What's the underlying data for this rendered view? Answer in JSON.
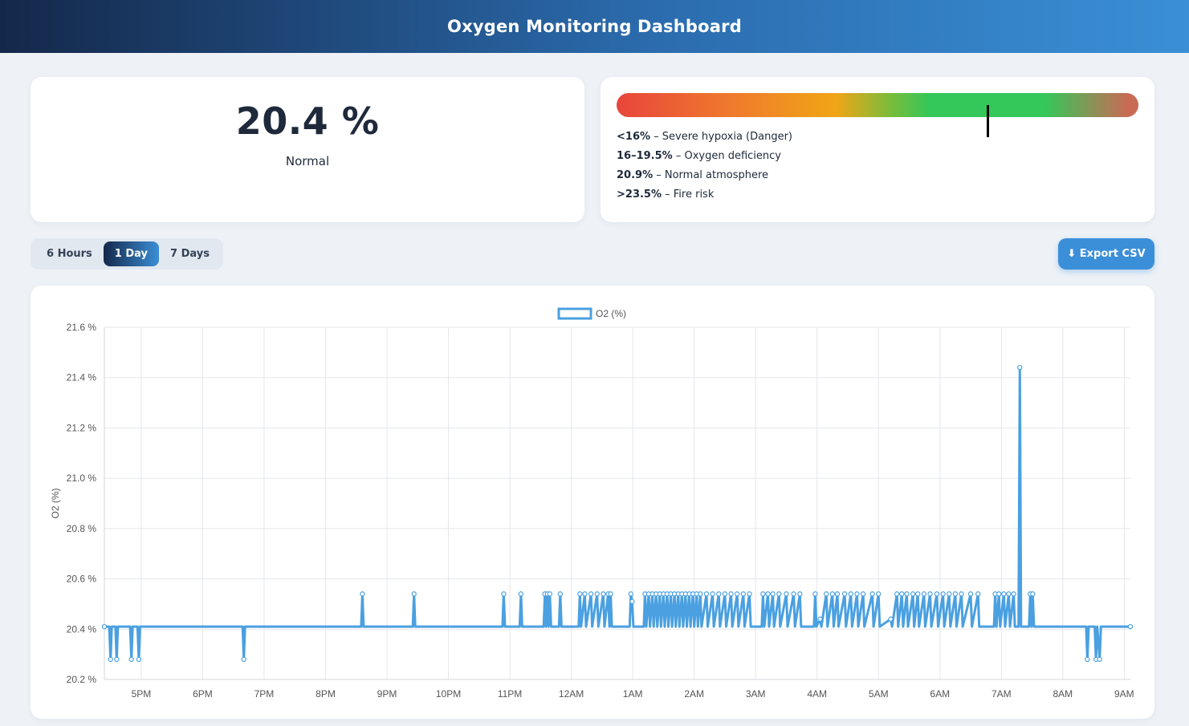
{
  "header": {
    "title": "Oxygen Monitoring Dashboard"
  },
  "reading": {
    "value": "20.4 %",
    "status": "Normal"
  },
  "scale": {
    "marker_value": 20.4,
    "ranges": [
      {
        "label": "<16%",
        "desc": " – Severe hypoxia (Danger)"
      },
      {
        "label": "16–19.5%",
        "desc": " – Oxygen deficiency"
      },
      {
        "label": "20.9%",
        "desc": " – Normal atmosphere"
      },
      {
        "label": ">23.5%",
        "desc": " – Fire risk"
      }
    ]
  },
  "range_tabs": [
    {
      "label": "6 Hours",
      "active": false
    },
    {
      "label": "1 Day",
      "active": true
    },
    {
      "label": "7 Days",
      "active": false
    }
  ],
  "export": {
    "label": "⬇ Export CSV"
  },
  "colors": {
    "line": "#4aa0e0",
    "accent": "#3b8fd9"
  },
  "chart_data": {
    "type": "line",
    "title": "",
    "ylabel": "O2 (%)",
    "ylim": [
      20.2,
      21.6
    ],
    "y_ticks": [
      "21.6 %",
      "21.4 %",
      "21.2 %",
      "21.0 %",
      "20.8 %",
      "20.6 %",
      "20.4 %",
      "20.2 %"
    ],
    "x_ticks": [
      "5PM",
      "6PM",
      "7PM",
      "8PM",
      "9PM",
      "10PM",
      "11PM",
      "12AM",
      "1AM",
      "2AM",
      "3AM",
      "4AM",
      "5AM",
      "6AM",
      "7AM",
      "8AM",
      "9AM"
    ],
    "x_range_hours": [
      16.4,
      33.1
    ],
    "baseline": 20.41,
    "series": [
      {
        "name": "O2 (%)",
        "points": [
          [
            16.4,
            20.41
          ],
          [
            16.48,
            20.41
          ],
          [
            16.5,
            20.28
          ],
          [
            16.52,
            20.41
          ],
          [
            16.58,
            20.41
          ],
          [
            16.6,
            20.28
          ],
          [
            16.62,
            20.41
          ],
          [
            16.82,
            20.41
          ],
          [
            16.84,
            20.28
          ],
          [
            16.86,
            20.41
          ],
          [
            16.94,
            20.41
          ],
          [
            16.96,
            20.28
          ],
          [
            16.98,
            20.41
          ],
          [
            18.65,
            20.41
          ],
          [
            18.67,
            20.28
          ],
          [
            18.69,
            20.41
          ],
          [
            20.58,
            20.41
          ],
          [
            20.6,
            20.54
          ],
          [
            20.62,
            20.41
          ],
          [
            21.42,
            20.41
          ],
          [
            21.44,
            20.54
          ],
          [
            21.46,
            20.41
          ],
          [
            22.88,
            20.41
          ],
          [
            22.9,
            20.54
          ],
          [
            22.92,
            20.41
          ],
          [
            23.16,
            20.41
          ],
          [
            23.18,
            20.54
          ],
          [
            23.2,
            20.41
          ],
          [
            23.55,
            20.41
          ],
          [
            23.57,
            20.54
          ],
          [
            23.59,
            20.41
          ],
          [
            23.61,
            20.54
          ],
          [
            23.63,
            20.41
          ],
          [
            23.65,
            20.54
          ],
          [
            23.67,
            20.41
          ],
          [
            23.8,
            20.41
          ],
          [
            23.82,
            20.54
          ],
          [
            23.84,
            20.41
          ],
          [
            24.12,
            20.41
          ],
          [
            24.14,
            20.54
          ],
          [
            24.16,
            20.41
          ],
          [
            24.22,
            20.54
          ],
          [
            24.24,
            20.41
          ],
          [
            24.32,
            20.54
          ],
          [
            24.34,
            20.41
          ],
          [
            24.42,
            20.54
          ],
          [
            24.44,
            20.41
          ],
          [
            24.52,
            20.54
          ],
          [
            24.54,
            20.41
          ],
          [
            24.6,
            20.54
          ],
          [
            24.62,
            20.41
          ],
          [
            24.64,
            20.54
          ],
          [
            24.66,
            20.41
          ],
          [
            24.95,
            20.41
          ],
          [
            24.97,
            20.54
          ],
          [
            24.99,
            20.51
          ],
          [
            25.01,
            20.41
          ],
          [
            25.18,
            20.41
          ],
          [
            25.2,
            20.54
          ],
          [
            25.22,
            20.41
          ],
          [
            25.26,
            20.54
          ],
          [
            25.28,
            20.41
          ],
          [
            25.32,
            20.54
          ],
          [
            25.34,
            20.41
          ],
          [
            25.38,
            20.54
          ],
          [
            25.4,
            20.41
          ],
          [
            25.44,
            20.54
          ],
          [
            25.46,
            20.41
          ],
          [
            25.5,
            20.54
          ],
          [
            25.52,
            20.41
          ],
          [
            25.56,
            20.54
          ],
          [
            25.58,
            20.41
          ],
          [
            25.62,
            20.54
          ],
          [
            25.64,
            20.41
          ],
          [
            25.68,
            20.54
          ],
          [
            25.7,
            20.41
          ],
          [
            25.74,
            20.54
          ],
          [
            25.76,
            20.41
          ],
          [
            25.8,
            20.54
          ],
          [
            25.82,
            20.41
          ],
          [
            25.86,
            20.54
          ],
          [
            25.88,
            20.41
          ],
          [
            25.92,
            20.54
          ],
          [
            25.94,
            20.41
          ],
          [
            25.98,
            20.54
          ],
          [
            26.0,
            20.41
          ],
          [
            26.04,
            20.54
          ],
          [
            26.06,
            20.41
          ],
          [
            26.1,
            20.54
          ],
          [
            26.12,
            20.41
          ],
          [
            26.2,
            20.54
          ],
          [
            26.22,
            20.41
          ],
          [
            26.3,
            20.54
          ],
          [
            26.32,
            20.41
          ],
          [
            26.4,
            20.54
          ],
          [
            26.42,
            20.41
          ],
          [
            26.5,
            20.54
          ],
          [
            26.52,
            20.41
          ],
          [
            26.6,
            20.54
          ],
          [
            26.62,
            20.41
          ],
          [
            26.7,
            20.54
          ],
          [
            26.72,
            20.41
          ],
          [
            26.8,
            20.54
          ],
          [
            26.82,
            20.41
          ],
          [
            26.9,
            20.54
          ],
          [
            26.92,
            20.41
          ],
          [
            27.1,
            20.41
          ],
          [
            27.12,
            20.54
          ],
          [
            27.14,
            20.41
          ],
          [
            27.2,
            20.54
          ],
          [
            27.22,
            20.41
          ],
          [
            27.28,
            20.54
          ],
          [
            27.3,
            20.41
          ],
          [
            27.38,
            20.54
          ],
          [
            27.4,
            20.41
          ],
          [
            27.5,
            20.54
          ],
          [
            27.52,
            20.41
          ],
          [
            27.62,
            20.54
          ],
          [
            27.64,
            20.41
          ],
          [
            27.72,
            20.54
          ],
          [
            27.74,
            20.41
          ],
          [
            27.95,
            20.41
          ],
          [
            27.97,
            20.54
          ],
          [
            27.99,
            20.41
          ],
          [
            28.05,
            20.44
          ],
          [
            28.07,
            20.41
          ],
          [
            28.15,
            20.54
          ],
          [
            28.17,
            20.41
          ],
          [
            28.25,
            20.54
          ],
          [
            28.27,
            20.41
          ],
          [
            28.33,
            20.54
          ],
          [
            28.35,
            20.41
          ],
          [
            28.45,
            20.54
          ],
          [
            28.47,
            20.41
          ],
          [
            28.55,
            20.54
          ],
          [
            28.57,
            20.41
          ],
          [
            28.65,
            20.54
          ],
          [
            28.67,
            20.41
          ],
          [
            28.75,
            20.54
          ],
          [
            28.77,
            20.41
          ],
          [
            28.9,
            20.54
          ],
          [
            28.92,
            20.41
          ],
          [
            29.0,
            20.54
          ],
          [
            29.02,
            20.41
          ],
          [
            29.2,
            20.44
          ],
          [
            29.22,
            20.41
          ],
          [
            29.3,
            20.54
          ],
          [
            29.32,
            20.41
          ],
          [
            29.38,
            20.54
          ],
          [
            29.4,
            20.41
          ],
          [
            29.46,
            20.54
          ],
          [
            29.48,
            20.41
          ],
          [
            29.56,
            20.54
          ],
          [
            29.58,
            20.41
          ],
          [
            29.64,
            20.54
          ],
          [
            29.66,
            20.41
          ],
          [
            29.74,
            20.54
          ],
          [
            29.76,
            20.41
          ],
          [
            29.84,
            20.54
          ],
          [
            29.86,
            20.41
          ],
          [
            29.95,
            20.54
          ],
          [
            29.97,
            20.41
          ],
          [
            30.05,
            20.54
          ],
          [
            30.07,
            20.41
          ],
          [
            30.15,
            20.54
          ],
          [
            30.17,
            20.41
          ],
          [
            30.25,
            20.54
          ],
          [
            30.27,
            20.41
          ],
          [
            30.35,
            20.54
          ],
          [
            30.37,
            20.41
          ],
          [
            30.5,
            20.54
          ],
          [
            30.52,
            20.41
          ],
          [
            30.62,
            20.54
          ],
          [
            30.64,
            20.41
          ],
          [
            30.88,
            20.41
          ],
          [
            30.9,
            20.54
          ],
          [
            30.92,
            20.41
          ],
          [
            30.96,
            20.54
          ],
          [
            30.98,
            20.41
          ],
          [
            31.04,
            20.54
          ],
          [
            31.06,
            20.41
          ],
          [
            31.12,
            20.54
          ],
          [
            31.14,
            20.41
          ],
          [
            31.2,
            20.54
          ],
          [
            31.22,
            20.41
          ],
          [
            31.28,
            20.41
          ],
          [
            31.3,
            21.44
          ],
          [
            31.32,
            20.41
          ],
          [
            31.45,
            20.41
          ],
          [
            31.47,
            20.54
          ],
          [
            31.49,
            20.41
          ],
          [
            31.51,
            20.54
          ],
          [
            31.53,
            20.41
          ],
          [
            32.38,
            20.41
          ],
          [
            32.4,
            20.28
          ],
          [
            32.42,
            20.41
          ],
          [
            32.52,
            20.41
          ],
          [
            32.54,
            20.28
          ],
          [
            32.56,
            20.41
          ],
          [
            32.6,
            20.28
          ],
          [
            32.62,
            20.41
          ],
          [
            33.1,
            20.41
          ]
        ]
      }
    ]
  }
}
